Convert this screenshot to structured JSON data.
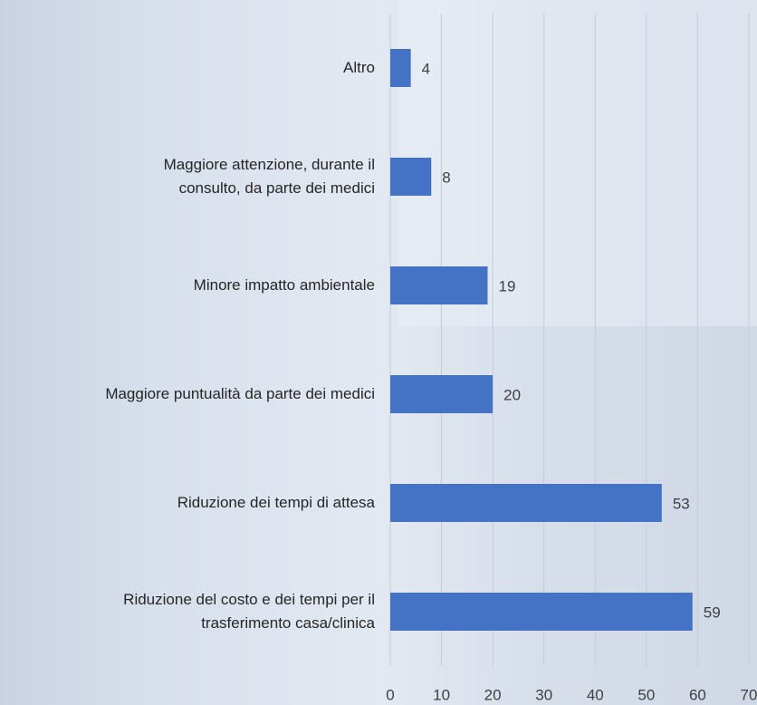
{
  "chart_data": {
    "type": "bar",
    "orientation": "horizontal",
    "categories": [
      "Altro",
      "Maggiore attenzione, durante il\nconsulto, da parte dei medici",
      "Minore impatto ambientale",
      "Maggiore puntualità da parte dei medici",
      "Riduzione dei tempi di attesa",
      "Riduzione del costo e dei tempi per il\ntrasferimento casa/clinica"
    ],
    "values": [
      4,
      8,
      19,
      20,
      53,
      59
    ],
    "color": "#4472c4",
    "xlim": [
      0,
      70
    ],
    "xticks": [
      0,
      10,
      20,
      30,
      40,
      50,
      60,
      70
    ],
    "grid": true
  }
}
